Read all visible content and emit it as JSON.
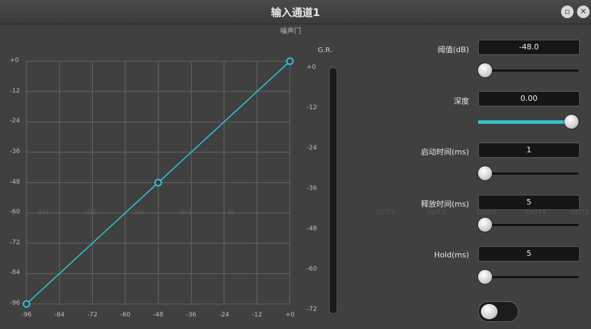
{
  "window": {
    "title": "输入通道1",
    "subtitle": "噪声门"
  },
  "title_buttons": {
    "minimize": "▫",
    "close": "✕"
  },
  "graph": {
    "y_labels": [
      "+0",
      "-12",
      "-24",
      "-36",
      "-48",
      "-60",
      "-72",
      "-84",
      "-96"
    ],
    "x_labels": [
      "-96",
      "-84",
      "-72",
      "-60",
      "-48",
      "-36",
      "-24",
      "-12",
      "+0"
    ],
    "curve_points": [
      [
        -96,
        -96
      ],
      [
        -48,
        -48
      ],
      [
        0,
        0
      ]
    ],
    "line_color": "#2ec4d4"
  },
  "gr": {
    "title": "G.R.",
    "labels": [
      "+0",
      "-12",
      "-24",
      "-36",
      "-48",
      "-60",
      "-72"
    ]
  },
  "controls": {
    "threshold": {
      "label": "阈值(dB)",
      "value": "-48.0",
      "slider_fraction": 0
    },
    "depth": {
      "label": "深度",
      "value": "0.00",
      "slider_fraction": 1
    },
    "attack": {
      "label": "启动时间(ms)",
      "value": "1",
      "slider_fraction": 0
    },
    "release": {
      "label": "释放时间(ms)",
      "value": "5",
      "slider_fraction": 0
    },
    "hold": {
      "label": "Hold(ms)",
      "value": "5",
      "slider_fraction": 0
    },
    "bypass_toggle": {
      "on": false
    }
  },
  "background_ghost": [
    "IN4",
    "IN5",
    "IN6",
    "IN7",
    "IN",
    "OUT1",
    "OUT2",
    "OUT3",
    "OUT4",
    "OUT5"
  ]
}
